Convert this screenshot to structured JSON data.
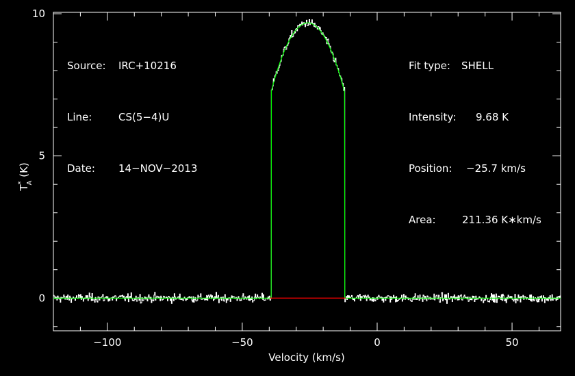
{
  "chart_data": {
    "type": "line",
    "xlabel": "Velocity (km/s)",
    "ylabel_main": "T",
    "ylabel_sup": "*",
    "ylabel_sub": "A",
    "ylabel_unit": " (K)",
    "xlim": [
      -120,
      68
    ],
    "ylim": [
      -1.15,
      10.05
    ],
    "xticks": [
      -100,
      -50,
      0,
      50
    ],
    "xtick_labels": [
      "−100",
      "−50",
      "0",
      "50"
    ],
    "yticks": [
      0,
      5,
      10
    ],
    "ytick_labels": [
      "0",
      "5",
      "10"
    ],
    "grid": false,
    "series": [
      {
        "role": "observed spectrum",
        "color": "#ffffff",
        "style": "histogram",
        "baseline_mean": 0.0,
        "noise_rms": 0.12,
        "channel_width": 0.25
      },
      {
        "role": "shell fit",
        "color": "#00ff00",
        "model": "SHELL",
        "intensity": 9.68,
        "center": -25.7,
        "half_width": 13.6,
        "horn_to_center": -0.25,
        "x_range": [
          -120,
          68
        ]
      },
      {
        "role": "fit window baseline",
        "color": "#ff0000",
        "x": [
          -39.8,
          -11.7
        ],
        "y": [
          0,
          0
        ]
      }
    ]
  },
  "info_left": {
    "rows": [
      {
        "key": "Source:",
        "value": "IRC+10216"
      },
      {
        "key": "Line:",
        "value": "CS(5−4)U"
      },
      {
        "key": "Date:",
        "value": "14−NOV−2013"
      }
    ]
  },
  "info_right": {
    "rows": [
      {
        "key": "Fit type:",
        "value": "SHELL"
      },
      {
        "key": "Intensity:",
        "value": "9.68 K"
      },
      {
        "key": "Position:",
        "value": "−25.7 km/s"
      },
      {
        "key": "Area:",
        "value": "211.36 K∗km/s"
      }
    ]
  },
  "colors": {
    "background": "#000000",
    "axes": "#ffffff",
    "spectrum": "#ffffff",
    "fit": "#00ff00",
    "window": "#ff0000"
  }
}
